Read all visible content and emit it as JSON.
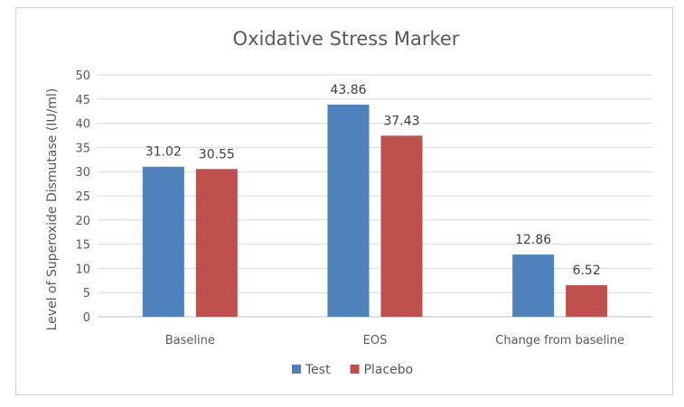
{
  "chart_data": {
    "type": "bar",
    "title": "Oxidative Stress Marker",
    "xlabel": "",
    "ylabel": "Level of Superoxide Dismutase (IU/ml)",
    "categories": [
      "Baseline",
      "EOS",
      "Change from baseline"
    ],
    "series": [
      {
        "name": "Test",
        "values": [
          31.02,
          43.86,
          12.86
        ],
        "color": "#4f81bd"
      },
      {
        "name": "Placebo",
        "values": [
          30.55,
          37.43,
          6.52
        ],
        "color": "#c0504d"
      }
    ],
    "ylim": [
      0,
      50
    ],
    "yticks": [
      "0",
      "5",
      "10",
      "15",
      "20",
      "25",
      "30",
      "35",
      "40",
      "45",
      "50"
    ],
    "data_labels": [
      [
        "31.02",
        "43.86",
        "12.86"
      ],
      [
        "30.55",
        "37.43",
        "6.52"
      ]
    ],
    "grid": true,
    "legend_position": "bottom"
  }
}
